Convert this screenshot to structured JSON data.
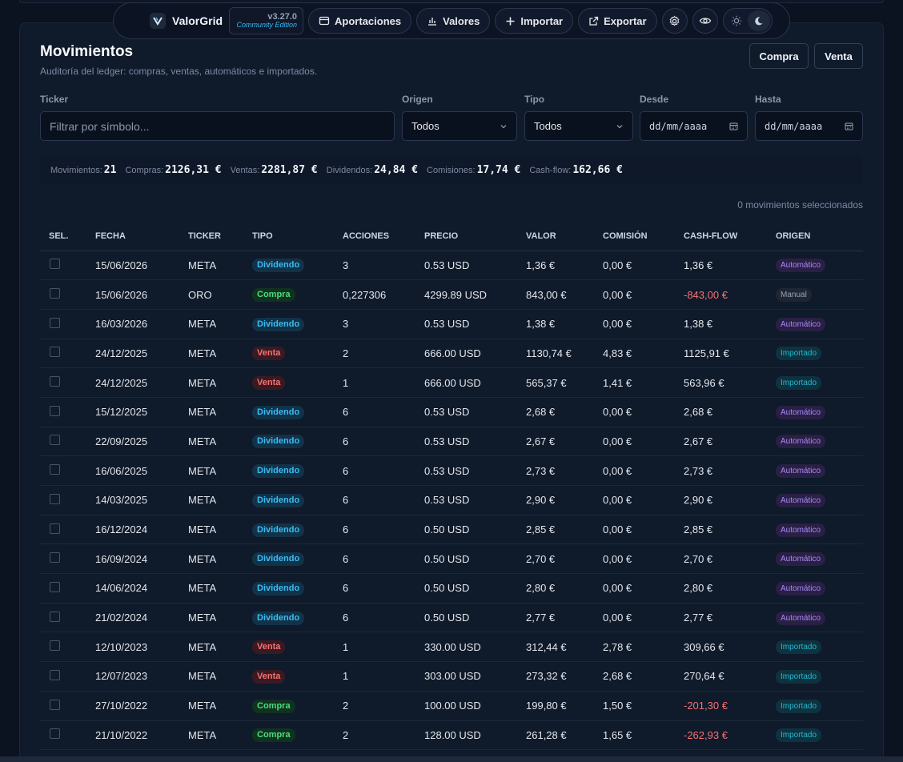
{
  "navbar": {
    "brand": "ValorGrid",
    "version": "v3.27.0",
    "edition": "Community Edition",
    "buttons": {
      "aportaciones": "Aportaciones",
      "valores": "Valores",
      "importar": "Importar",
      "exportar": "Exportar"
    }
  },
  "page": {
    "title": "Movimientos",
    "subtitle": "Auditoría del ledger: compras, ventas, automáticos e importados.",
    "buy_label": "Compra",
    "sell_label": "Venta"
  },
  "filters": {
    "ticker_label": "Ticker",
    "ticker_placeholder": "Filtrar por símbolo...",
    "origen_label": "Origen",
    "origen_value": "Todos",
    "tipo_label": "Tipo",
    "tipo_value": "Todos",
    "desde_label": "Desde",
    "desde_value": "dd/mm/aaaa",
    "hasta_label": "Hasta",
    "hasta_value": "dd/mm/aaaa"
  },
  "stats": {
    "movimientos_label": "Movimientos:",
    "movimientos": "21",
    "compras_label": "Compras:",
    "compras": "2126,31 €",
    "ventas_label": "Ventas:",
    "ventas": "2281,87 €",
    "dividendos_label": "Dividendos:",
    "dividendos": "24,84 €",
    "comisiones_label": "Comisiones:",
    "comisiones": "17,74 €",
    "cashflow_label": "Cash-flow:",
    "cashflow": "162,66 €"
  },
  "selected_text": "0 movimientos seleccionados",
  "table": {
    "headers": [
      "SEL.",
      "FECHA",
      "TICKER",
      "TIPO",
      "ACCIONES",
      "PRECIO",
      "VALOR",
      "COMISIÓN",
      "CASH-FLOW",
      "ORIGEN"
    ],
    "rows": [
      {
        "fecha": "15/06/2026",
        "ticker": "META",
        "tipo": "Dividendo",
        "acciones": "3",
        "precio": "0.53 USD",
        "valor": "1,36 €",
        "comision": "0,00 €",
        "cashflow": "1,36 €",
        "origen": "Automático"
      },
      {
        "fecha": "15/06/2026",
        "ticker": "ORO",
        "tipo": "Compra",
        "acciones": "0,227306",
        "precio": "4299.89 USD",
        "valor": "843,00 €",
        "comision": "0,00 €",
        "cashflow": "-843,00 €",
        "origen": "Manual"
      },
      {
        "fecha": "16/03/2026",
        "ticker": "META",
        "tipo": "Dividendo",
        "acciones": "3",
        "precio": "0.53 USD",
        "valor": "1,38 €",
        "comision": "0,00 €",
        "cashflow": "1,38 €",
        "origen": "Automático"
      },
      {
        "fecha": "24/12/2025",
        "ticker": "META",
        "tipo": "Venta",
        "acciones": "2",
        "precio": "666.00 USD",
        "valor": "1130,74 €",
        "comision": "4,83 €",
        "cashflow": "1125,91 €",
        "origen": "Importado"
      },
      {
        "fecha": "24/12/2025",
        "ticker": "META",
        "tipo": "Venta",
        "acciones": "1",
        "precio": "666.00 USD",
        "valor": "565,37 €",
        "comision": "1,41 €",
        "cashflow": "563,96 €",
        "origen": "Importado"
      },
      {
        "fecha": "15/12/2025",
        "ticker": "META",
        "tipo": "Dividendo",
        "acciones": "6",
        "precio": "0.53 USD",
        "valor": "2,68 €",
        "comision": "0,00 €",
        "cashflow": "2,68 €",
        "origen": "Automático"
      },
      {
        "fecha": "22/09/2025",
        "ticker": "META",
        "tipo": "Dividendo",
        "acciones": "6",
        "precio": "0.53 USD",
        "valor": "2,67 €",
        "comision": "0,00 €",
        "cashflow": "2,67 €",
        "origen": "Automático"
      },
      {
        "fecha": "16/06/2025",
        "ticker": "META",
        "tipo": "Dividendo",
        "acciones": "6",
        "precio": "0.53 USD",
        "valor": "2,73 €",
        "comision": "0,00 €",
        "cashflow": "2,73 €",
        "origen": "Automático"
      },
      {
        "fecha": "14/03/2025",
        "ticker": "META",
        "tipo": "Dividendo",
        "acciones": "6",
        "precio": "0.53 USD",
        "valor": "2,90 €",
        "comision": "0,00 €",
        "cashflow": "2,90 €",
        "origen": "Automático"
      },
      {
        "fecha": "16/12/2024",
        "ticker": "META",
        "tipo": "Dividendo",
        "acciones": "6",
        "precio": "0.50 USD",
        "valor": "2,85 €",
        "comision": "0,00 €",
        "cashflow": "2,85 €",
        "origen": "Automático"
      },
      {
        "fecha": "16/09/2024",
        "ticker": "META",
        "tipo": "Dividendo",
        "acciones": "6",
        "precio": "0.50 USD",
        "valor": "2,70 €",
        "comision": "0,00 €",
        "cashflow": "2,70 €",
        "origen": "Automático"
      },
      {
        "fecha": "14/06/2024",
        "ticker": "META",
        "tipo": "Dividendo",
        "acciones": "6",
        "precio": "0.50 USD",
        "valor": "2,80 €",
        "comision": "0,00 €",
        "cashflow": "2,80 €",
        "origen": "Automático"
      },
      {
        "fecha": "21/02/2024",
        "ticker": "META",
        "tipo": "Dividendo",
        "acciones": "6",
        "precio": "0.50 USD",
        "valor": "2,77 €",
        "comision": "0,00 €",
        "cashflow": "2,77 €",
        "origen": "Automático"
      },
      {
        "fecha": "12/10/2023",
        "ticker": "META",
        "tipo": "Venta",
        "acciones": "1",
        "precio": "330.00 USD",
        "valor": "312,44 €",
        "comision": "2,78 €",
        "cashflow": "309,66 €",
        "origen": "Importado"
      },
      {
        "fecha": "12/07/2023",
        "ticker": "META",
        "tipo": "Venta",
        "acciones": "1",
        "precio": "303.00 USD",
        "valor": "273,32 €",
        "comision": "2,68 €",
        "cashflow": "270,64 €",
        "origen": "Importado"
      },
      {
        "fecha": "27/10/2022",
        "ticker": "META",
        "tipo": "Compra",
        "acciones": "2",
        "precio": "100.00 USD",
        "valor": "199,80 €",
        "comision": "1,50 €",
        "cashflow": "-201,30 €",
        "origen": "Importado"
      },
      {
        "fecha": "21/10/2022",
        "ticker": "META",
        "tipo": "Compra",
        "acciones": "2",
        "precio": "128.00 USD",
        "valor": "261,28 €",
        "comision": "1,65 €",
        "cashflow": "-262,93 €",
        "origen": "Importado"
      }
    ]
  },
  "colors": {
    "background": "#0b1220",
    "panel": "#0f1a2b",
    "dividendo": "#38bdf8",
    "compra": "#4ade80",
    "venta": "#f87171",
    "automatico": "#a78bfa",
    "importado": "#22b8cf",
    "negative_cashflow": "#f87171"
  },
  "icons": {
    "brand": "valorgrid-logo-icon",
    "aportaciones": "wallet-icon",
    "valores": "bar-chart-icon",
    "importar": "plus-icon",
    "exportar": "external-link-icon",
    "settings": "gear-icon",
    "visibility": "eye-icon",
    "theme_light": "sun-icon",
    "theme_dark": "moon-icon",
    "select": "chevron-down-icon",
    "date": "calendar-icon"
  }
}
